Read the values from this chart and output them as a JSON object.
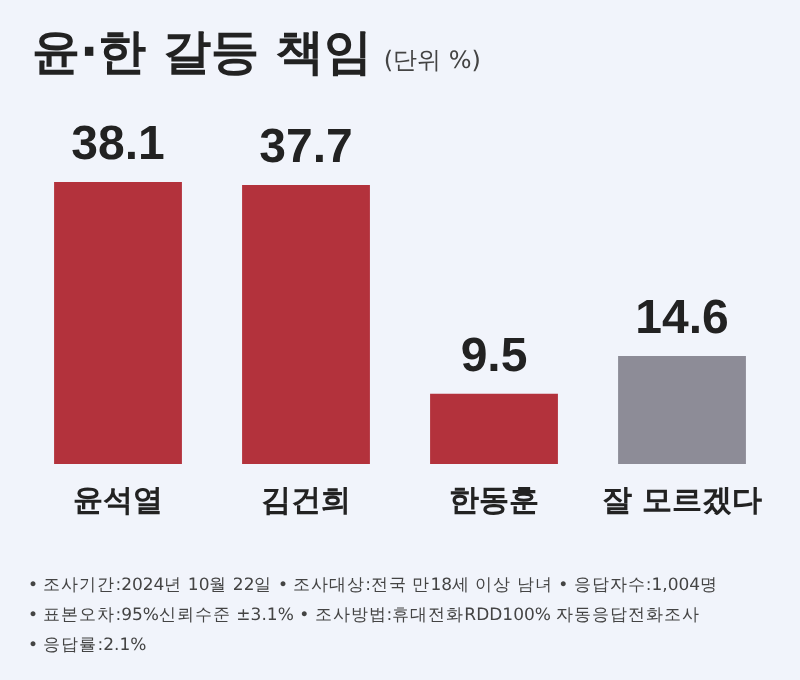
{
  "chart_data": {
    "type": "bar",
    "title": "윤·한 갈등 책임",
    "subtitle": "(단위 %)",
    "categories": [
      "윤석열",
      "김건희",
      "한동훈",
      "잘 모르겠다"
    ],
    "values": [
      38.1,
      37.7,
      9.5,
      14.6
    ],
    "colors": [
      "#b3323c",
      "#b3323c",
      "#b3323c",
      "#8d8c97"
    ],
    "data_labels": true,
    "grid": false,
    "legend": false,
    "annotations": [
      "• 조사기간:2024년 10월 22일  • 조사대상:전국 만18세 이상 남녀  • 응답자수:1,004명",
      "• 표본오차:95%신뢰수준 ±3.1%  • 조사방법:휴대전화RDD100% 자동응답전화조사",
      "• 응답률:2.1%"
    ]
  }
}
